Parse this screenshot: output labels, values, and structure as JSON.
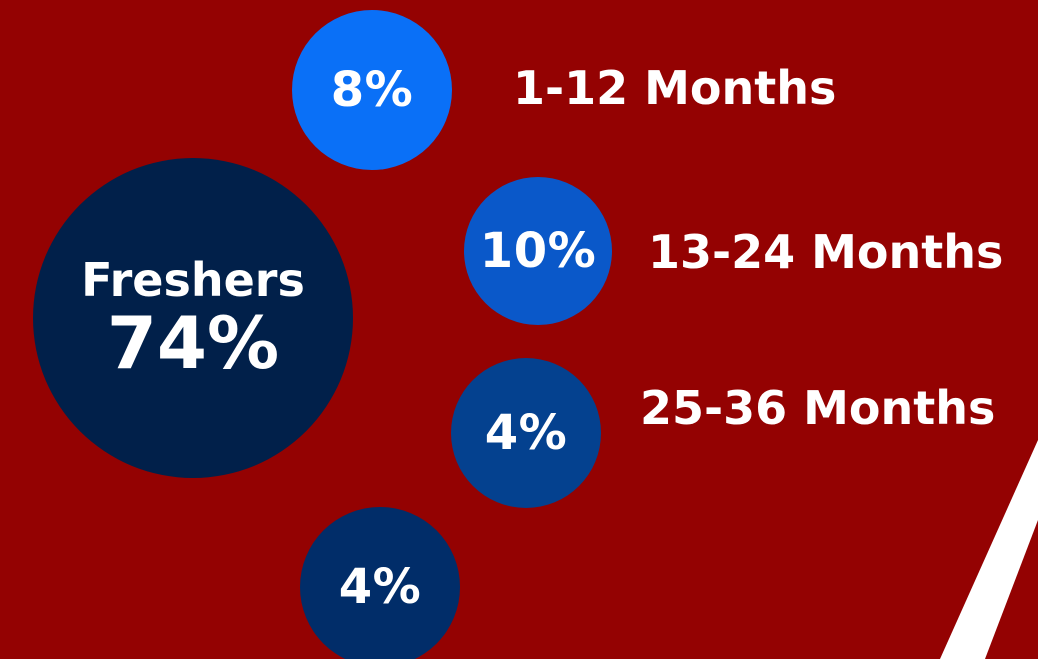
{
  "chart_data": {
    "type": "bubble",
    "title": "",
    "colors": {
      "background": "#940202",
      "stripe": "#ffffff",
      "text": "#ffffff"
    },
    "main": {
      "label": "Freshers",
      "value": 74,
      "value_text": "74%",
      "color": "#01204a"
    },
    "segments": [
      {
        "label": "1-12 Months",
        "value": 8,
        "value_text": "8%",
        "color": "#0a70f7"
      },
      {
        "label": "13-24 Months",
        "value": 10,
        "value_text": "10%",
        "color": "#0a58c9"
      },
      {
        "label": "25-36 Months",
        "value": 4,
        "value_text": "4%",
        "color": "#04418f"
      },
      {
        "label": "",
        "value": 4,
        "value_text": "4%",
        "color": "#012d69"
      }
    ]
  }
}
